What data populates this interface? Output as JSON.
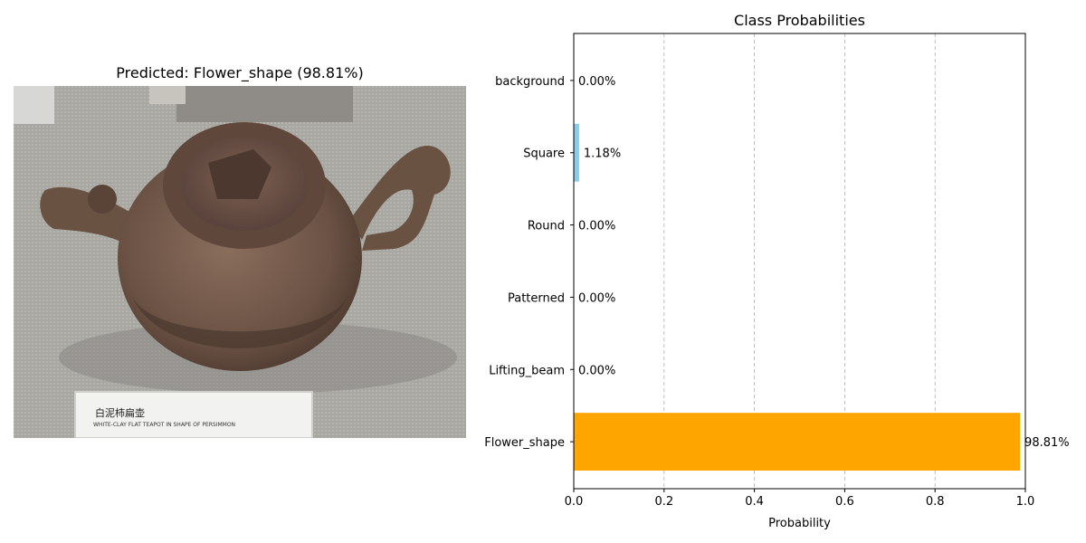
{
  "image_panel": {
    "title": "Predicted: Flower_shape (98.81%)",
    "placard_cn": "白泥柿扁壶",
    "placard_en": "WHITE-CLAY FLAT TEAPOT IN SHAPE OF PERSIMMON"
  },
  "chart_data": {
    "type": "bar",
    "orientation": "horizontal",
    "title": "Class Probabilities",
    "xlabel": "Probability",
    "ylabel": "",
    "xlim": [
      0,
      1.0
    ],
    "xticks": [
      0.0,
      0.2,
      0.4,
      0.6,
      0.8,
      1.0
    ],
    "xtick_labels": [
      "0.0",
      "0.2",
      "0.4",
      "0.6",
      "0.8",
      "1.0"
    ],
    "grid": "x-dashed",
    "categories": [
      "background",
      "Square",
      "Round",
      "Patterned",
      "Lifting_beam",
      "Flower_shape"
    ],
    "values": [
      0.0,
      0.0118,
      0.0,
      0.0,
      0.0,
      0.9881
    ],
    "value_labels": [
      "0.00%",
      "1.18%",
      "0.00%",
      "0.00%",
      "0.00%",
      "98.81%"
    ],
    "colors": [
      "#87ceeb",
      "#87ceeb",
      "#87ceeb",
      "#87ceeb",
      "#87ceeb",
      "#ffa500"
    ]
  }
}
